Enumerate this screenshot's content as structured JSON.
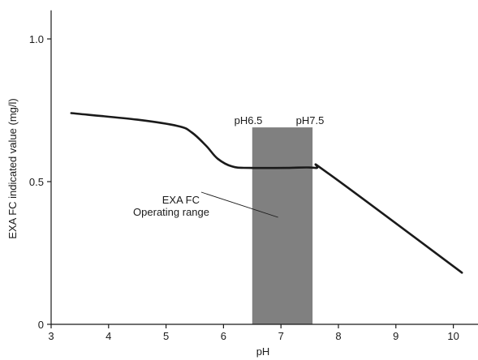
{
  "chart_data": {
    "type": "line",
    "title": "",
    "xlabel": "pH",
    "ylabel": "EXA FC indicated value (mg/l)",
    "xlim": [
      3,
      10.5
    ],
    "ylim": [
      0,
      1.1
    ],
    "x_ticks": [
      3,
      4,
      5,
      6,
      7,
      8,
      9,
      10
    ],
    "y_ticks": [
      {
        "value": 0,
        "label": "0"
      },
      {
        "value": 0.5,
        "label": "0.5"
      },
      {
        "value": 1.0,
        "label": "1.0"
      }
    ],
    "grid": false,
    "series": [
      {
        "points": [
          [
            3.35,
            0.74
          ],
          [
            4.5,
            0.717
          ],
          [
            5.2,
            0.695
          ],
          [
            5.45,
            0.672
          ],
          [
            5.7,
            0.625
          ],
          [
            5.9,
            0.58
          ],
          [
            6.15,
            0.553
          ],
          [
            6.45,
            0.548
          ],
          [
            7.1,
            0.548
          ],
          [
            7.6,
            0.548
          ],
          [
            7.85,
            0.525
          ],
          [
            10.15,
            0.181
          ]
        ]
      }
    ],
    "shaded_region": {
      "x_start": 6.5,
      "x_end": 7.55,
      "y_top": 0.69,
      "color": "#808080",
      "label_left": "pH6.5",
      "label_right": "pH7.5"
    },
    "annotation": {
      "line1": "EXA FC",
      "line2": "Operating range",
      "pointer_x": 6.95,
      "pointer_y": 0.375
    }
  }
}
